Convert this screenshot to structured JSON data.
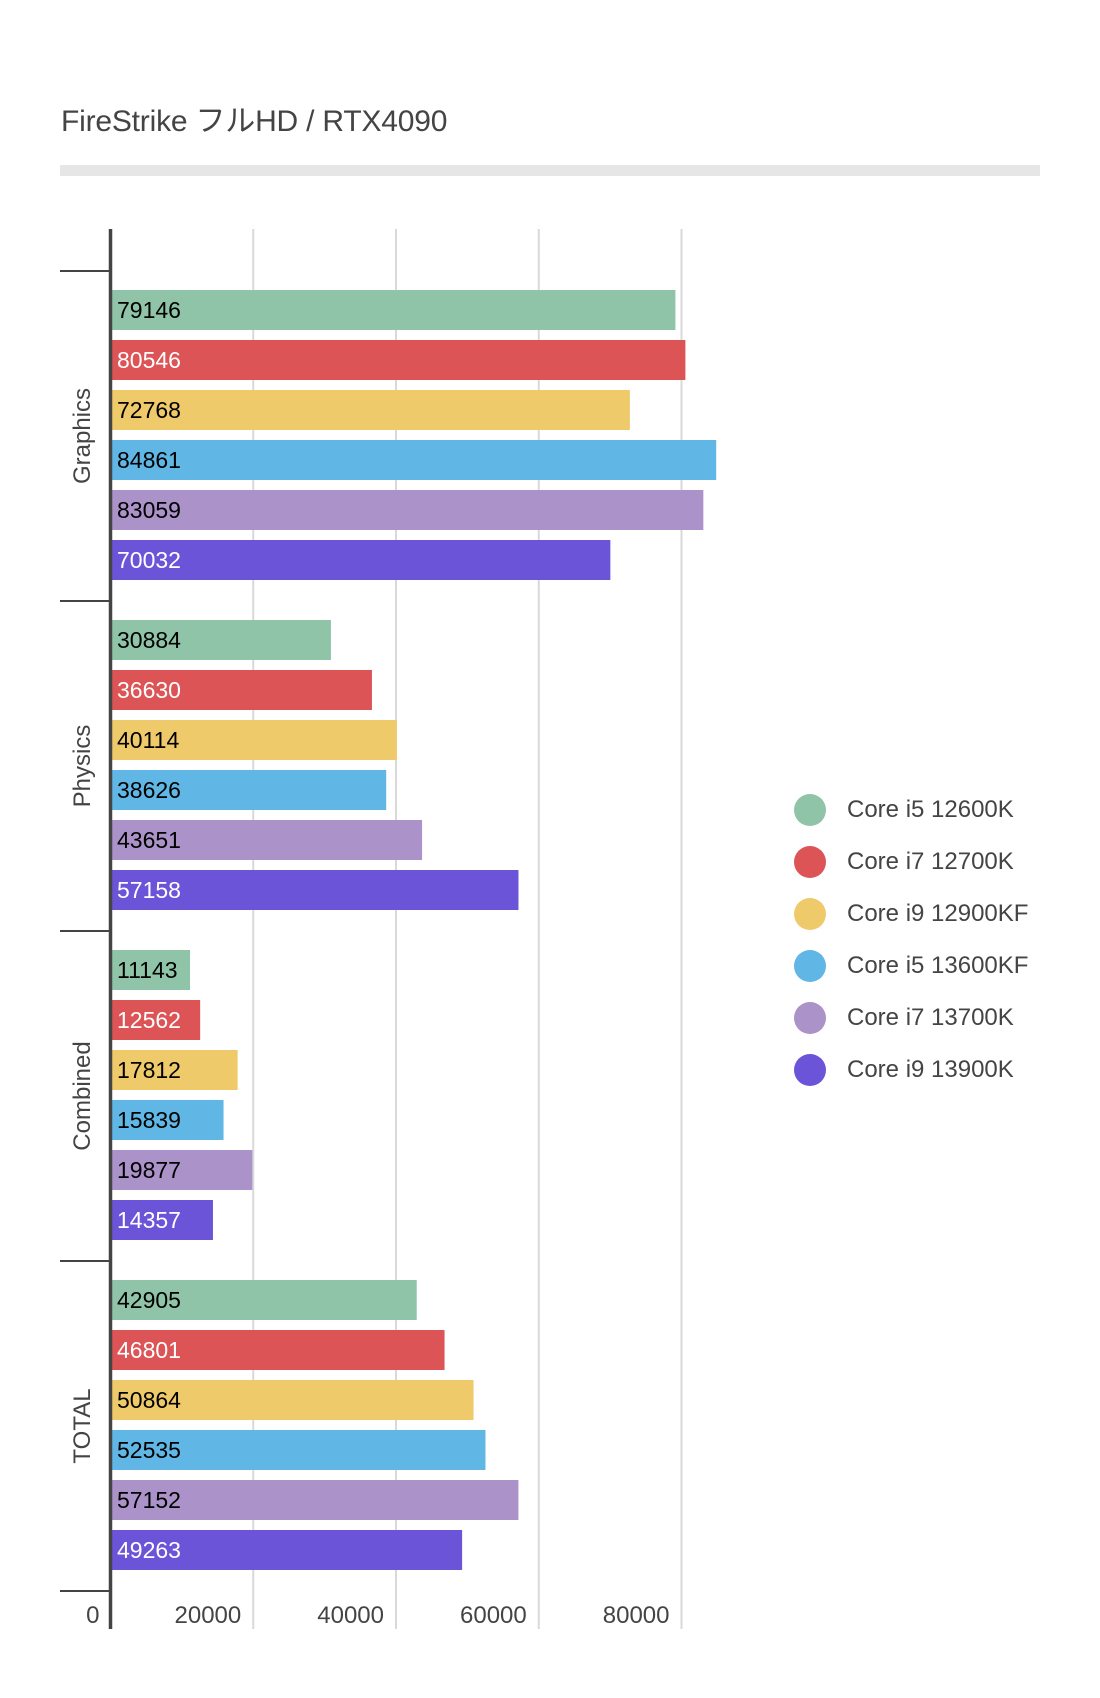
{
  "chart_data": {
    "type": "bar",
    "orientation": "horizontal",
    "title": "FireStrike フルHD / RTX4090",
    "xlabel": "",
    "ylabel": "",
    "xlim": [
      0,
      80000
    ],
    "x_ticks": [
      0,
      20000,
      40000,
      60000,
      80000
    ],
    "x_tick_labels": [
      "0",
      "20000",
      "40000",
      "60000",
      "80000"
    ],
    "grid": true,
    "legend_position": "right",
    "categories": [
      "Graphics",
      "Physics",
      "Combined",
      "TOTAL"
    ],
    "series": [
      {
        "name": "Core i5 12600K",
        "color": "#8fc4a8",
        "label_color": "#000000",
        "values": [
          79146,
          30884,
          11143,
          42905
        ]
      },
      {
        "name": "Core i7 12700K",
        "color": "#dc5455",
        "label_color": "#ffffff",
        "values": [
          80546,
          36630,
          12562,
          46801
        ]
      },
      {
        "name": "Core i9 12900KF",
        "color": "#efca6a",
        "label_color": "#000000",
        "values": [
          72768,
          40114,
          17812,
          50864
        ]
      },
      {
        "name": "Core i5 13600KF",
        "color": "#60b6e4",
        "label_color": "#000000",
        "values": [
          84861,
          38626,
          15839,
          52535
        ]
      },
      {
        "name": "Core i7 13700K",
        "color": "#ab92c8",
        "label_color": "#000000",
        "values": [
          83059,
          43651,
          19877,
          57152
        ]
      },
      {
        "name": "Core i9 13900K",
        "color": "#6c54d9",
        "label_color": "#ffffff",
        "values": [
          70032,
          57158,
          14357,
          49263
        ]
      }
    ],
    "data_labels": true
  },
  "colors": {
    "axis": "#444444",
    "gridline": "#d9d9d9",
    "title_rule": "#e6e6e6",
    "text": "#444444"
  }
}
